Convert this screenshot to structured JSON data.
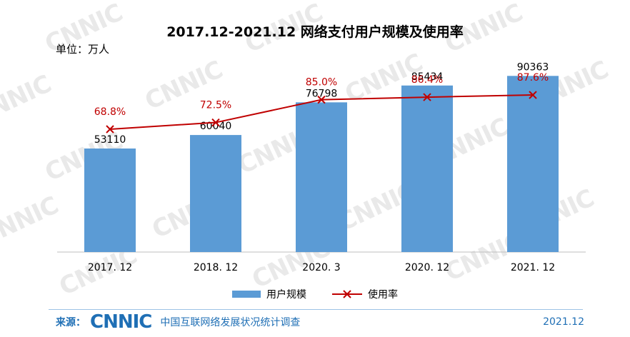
{
  "title": "2017.12-2021.12 网络支付用户规模及使用率",
  "unit_label": "单位：万人",
  "watermark_text": "CNNIC",
  "chart_data": {
    "type": "bar",
    "categories": [
      "2017. 12",
      "2018. 12",
      "2020. 3",
      "2020. 12",
      "2021. 12"
    ],
    "series": [
      {
        "name": "用户规模",
        "type": "bar",
        "values": [
          53110,
          60040,
          76798,
          85434,
          90363
        ],
        "labels": [
          "53110",
          "60040",
          "76798",
          "85434",
          "90363"
        ],
        "color": "#5b9bd5"
      },
      {
        "name": "使用率",
        "type": "line",
        "values": [
          68.8,
          72.5,
          85.0,
          86.4,
          87.6
        ],
        "labels": [
          "68.8%",
          "72.5%",
          "85.0%",
          "86.4%",
          "87.6%"
        ],
        "color": "#c00000"
      }
    ],
    "bar_ylim": [
      0,
      100000
    ],
    "line_ylim": [
      0,
      100
    ],
    "legend": "bottom"
  },
  "footer": {
    "source_label": "来源：",
    "logo": "CNNIC",
    "org": "中国互联网络发展状况统计调查",
    "date": "2021.12"
  }
}
